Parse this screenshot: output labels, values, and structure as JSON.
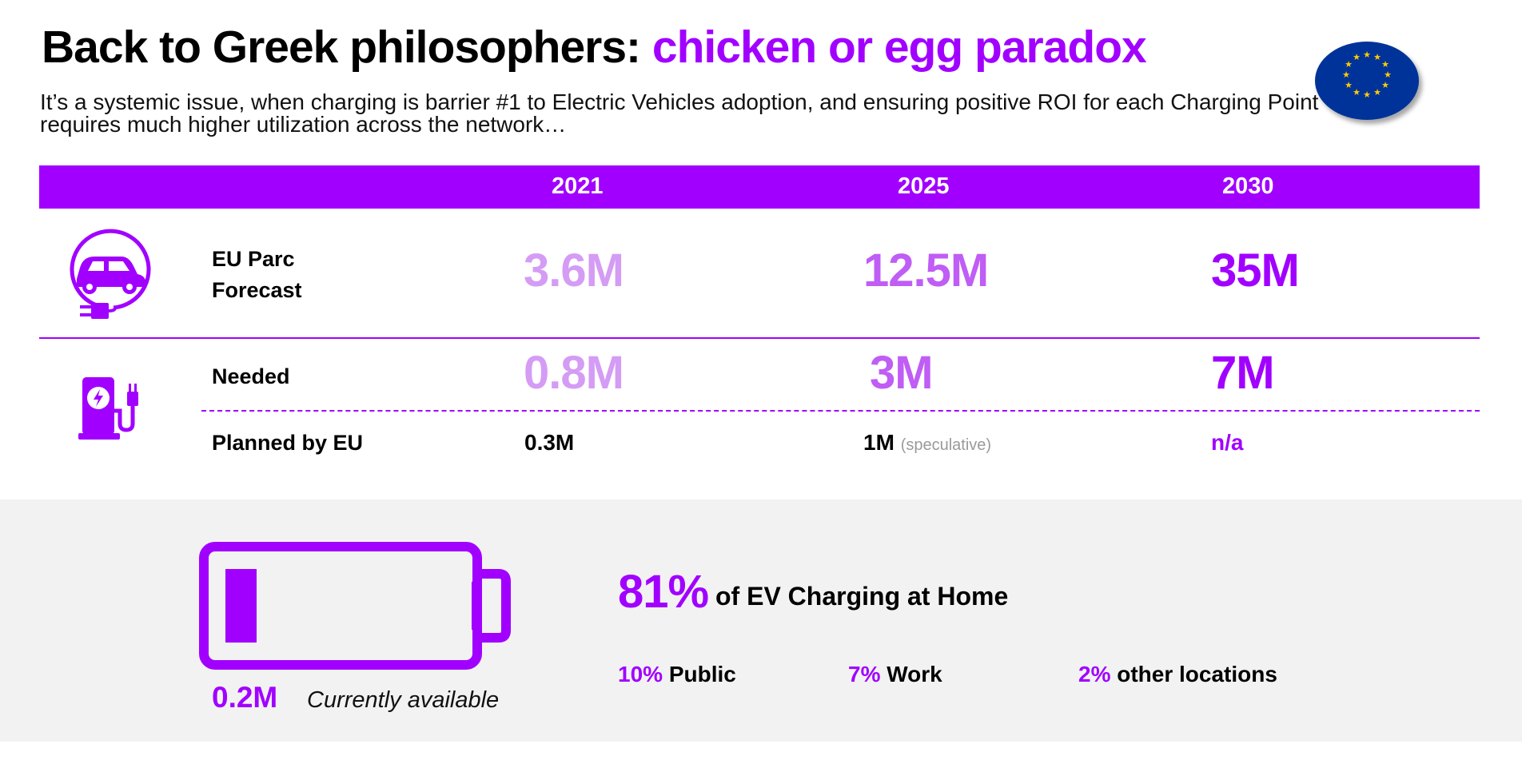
{
  "title": {
    "main": "Back to Greek philosophers: ",
    "accent": "chicken or egg paradox"
  },
  "subtitle": "It’s a systemic issue, when charging is barrier #1 to Electric Vehicles adoption, and ensuring positive ROI for each Charging Point requires much higher utilization across the network…",
  "colors": {
    "accent": "#a100ff",
    "light_value": "#d49cf5",
    "mid_value": "#c05df5",
    "panel": "#f2f2f2",
    "flag_blue": "#003399",
    "flag_star": "#ffcc00"
  },
  "icons": {
    "flag": "eu-flag-icon",
    "car": "electric-car-plug-icon",
    "charger": "charging-station-icon",
    "battery": "battery-low-icon"
  },
  "table": {
    "years": [
      "2021",
      "2025",
      "2030"
    ],
    "rows": {
      "parc": {
        "label_line1": "EU Parc",
        "label_line2": "Forecast",
        "values": [
          "3.6M",
          "12.5M",
          "35M"
        ]
      },
      "needed": {
        "label": "Needed",
        "values": [
          "0.8M",
          "3M",
          "7M"
        ]
      },
      "planned": {
        "label": "Planned by EU",
        "values": [
          "0.3M",
          "1M",
          "n/a"
        ],
        "note_2025": "(speculative)"
      }
    }
  },
  "bottom": {
    "available_value": "0.2M",
    "available_label": "Currently available",
    "battery_level": 0.13,
    "home_pct": "81%",
    "home_label": "of EV Charging at Home",
    "stats": [
      {
        "pct": "10%",
        "label": "Public"
      },
      {
        "pct": "7%",
        "label": "Work"
      },
      {
        "pct": "2%",
        "label": "other locations"
      }
    ]
  }
}
